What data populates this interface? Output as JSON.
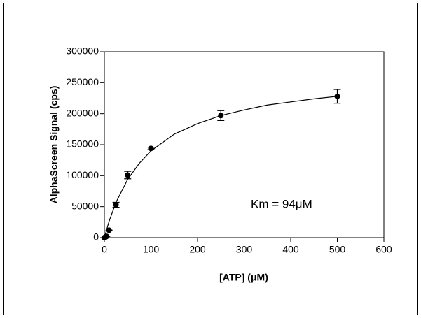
{
  "chart_data": {
    "type": "scatter",
    "x_label": "[ATP] (μM)",
    "y_label": "AlphaScreen Signal (cps)",
    "annotation": "Km = 94μM",
    "xlim": [
      0,
      600
    ],
    "xticks": [
      0,
      100,
      200,
      300,
      400,
      500,
      600
    ],
    "ylim": [
      0,
      300000
    ],
    "yticks": [
      0,
      50000,
      100000,
      150000,
      200000,
      250000,
      300000
    ],
    "color": "#000000",
    "points": {
      "x": [
        0,
        2.5,
        5,
        10,
        25,
        50,
        100,
        250,
        500
      ],
      "values": [
        0,
        1000,
        2000,
        12000,
        53000,
        101000,
        144000,
        197000,
        228000
      ],
      "errors": [
        0,
        0,
        0,
        0,
        4000,
        6000,
        2000,
        8000,
        11000
      ]
    },
    "fit": {
      "x": [
        0,
        10,
        25,
        50,
        75,
        100,
        150,
        200,
        250,
        300,
        350,
        400,
        450,
        500
      ],
      "values": [
        0,
        26000,
        57000,
        94000,
        120000,
        140000,
        167000,
        184000,
        197000,
        206000,
        214000,
        219000,
        224000,
        228000
      ]
    }
  }
}
